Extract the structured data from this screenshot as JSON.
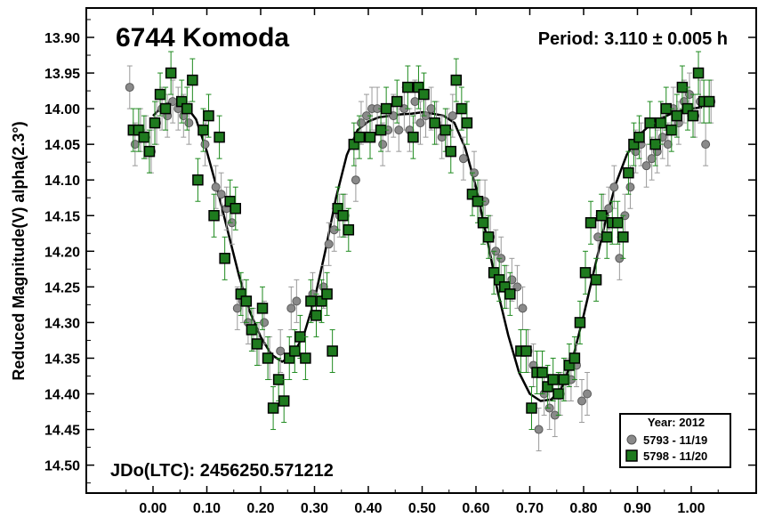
{
  "chart_data": {
    "type": "scatter",
    "title": "6744 Komoda",
    "annotations": {
      "period": "Period: 3.110 ± 0.005 h",
      "jd": "JDo(LTC): 2456250.571212"
    },
    "ylabel": "Reduced Magnitude(V) alpha(2.3°)",
    "xlabel": "",
    "xlim": [
      -0.05,
      1.05
    ],
    "ylim": [
      14.55,
      13.85
    ],
    "y_inverted": true,
    "x_ticks": [
      "0.00",
      "0.10",
      "0.20",
      "0.30",
      "0.40",
      "0.50",
      "0.60",
      "0.70",
      "0.80",
      "0.90",
      "1.00"
    ],
    "y_ticks": [
      "13.90",
      "13.95",
      "14.00",
      "14.05",
      "14.10",
      "14.15",
      "14.20",
      "14.25",
      "14.30",
      "14.35",
      "14.40",
      "14.45",
      "14.50"
    ],
    "grid": false,
    "legend": {
      "position": "bottom-right",
      "title": "Year: 2012",
      "entries": [
        {
          "label": "5793 - 11/19",
          "marker": "circle",
          "color": "#888888"
        },
        {
          "label": "5798 - 11/20",
          "marker": "square",
          "color": "#1e7a1e"
        }
      ]
    },
    "fit_curve": {
      "color": "#000000",
      "x": [
        0.0,
        0.02,
        0.04,
        0.06,
        0.08,
        0.1,
        0.12,
        0.14,
        0.16,
        0.18,
        0.2,
        0.22,
        0.24,
        0.26,
        0.28,
        0.3,
        0.32,
        0.34,
        0.36,
        0.38,
        0.4,
        0.42,
        0.44,
        0.46,
        0.48,
        0.5,
        0.52,
        0.54,
        0.56,
        0.58,
        0.6,
        0.62,
        0.64,
        0.66,
        0.68,
        0.7,
        0.72,
        0.74,
        0.76,
        0.78,
        0.8,
        0.82,
        0.84,
        0.86,
        0.88,
        0.9,
        0.92,
        0.94,
        0.96,
        0.98,
        1.0,
        1.02
      ],
      "y": [
        14.01,
        13.995,
        13.988,
        13.995,
        14.015,
        14.06,
        14.115,
        14.175,
        14.235,
        14.285,
        14.32,
        14.345,
        14.355,
        14.345,
        14.318,
        14.268,
        14.2,
        14.125,
        14.065,
        14.03,
        14.018,
        14.012,
        14.01,
        14.008,
        14.007,
        14.005,
        14.007,
        14.01,
        14.02,
        14.055,
        14.11,
        14.18,
        14.255,
        14.318,
        14.37,
        14.4,
        14.41,
        14.408,
        14.39,
        14.35,
        14.29,
        14.225,
        14.16,
        14.105,
        14.065,
        14.04,
        14.025,
        14.015,
        14.008,
        14.003,
        14.0,
        13.998
      ]
    },
    "series": [
      {
        "name": "5793 - 11/19",
        "marker": "circle",
        "color": "#888888",
        "points": [
          [
            -0.04,
            13.97
          ],
          [
            -0.03,
            14.05
          ],
          [
            -0.02,
            14.03
          ],
          [
            -0.01,
            14.04
          ],
          [
            0.0,
            14.06
          ],
          [
            0.01,
            14.02
          ],
          [
            0.02,
            14.0
          ],
          [
            0.03,
            14.01
          ],
          [
            0.04,
            13.99
          ],
          [
            0.05,
            14.0
          ],
          [
            0.06,
            14.01
          ],
          [
            0.07,
            14.02
          ],
          [
            0.1,
            14.05
          ],
          [
            0.12,
            14.11
          ],
          [
            0.13,
            14.12
          ],
          [
            0.14,
            14.14
          ],
          [
            0.15,
            14.16
          ],
          [
            0.16,
            14.28
          ],
          [
            0.17,
            14.27
          ],
          [
            0.18,
            14.3
          ],
          [
            0.19,
            14.31
          ],
          [
            0.2,
            14.33
          ],
          [
            0.21,
            14.3
          ],
          [
            0.22,
            14.35
          ],
          [
            0.24,
            14.34
          ],
          [
            0.26,
            14.28
          ],
          [
            0.27,
            14.27
          ],
          [
            0.3,
            14.26
          ],
          [
            0.32,
            14.25
          ],
          [
            0.33,
            14.19
          ],
          [
            0.34,
            14.17
          ],
          [
            0.35,
            14.15
          ],
          [
            0.36,
            14.15
          ],
          [
            0.38,
            14.1
          ],
          [
            0.39,
            14.02
          ],
          [
            0.4,
            14.01
          ],
          [
            0.41,
            14.0
          ],
          [
            0.42,
            14.0
          ],
          [
            0.43,
            14.05
          ],
          [
            0.44,
            14.03
          ],
          [
            0.45,
            14.01
          ],
          [
            0.46,
            14.03
          ],
          [
            0.47,
            14.0
          ],
          [
            0.48,
            14.03
          ],
          [
            0.49,
            13.99
          ],
          [
            0.5,
            14.02
          ],
          [
            0.51,
            14.01
          ],
          [
            0.52,
            14.0
          ],
          [
            0.53,
            14.02
          ],
          [
            0.54,
            14.04
          ],
          [
            0.55,
            14.03
          ],
          [
            0.56,
            14.01
          ],
          [
            0.58,
            14.07
          ],
          [
            0.6,
            14.09
          ],
          [
            0.61,
            14.13
          ],
          [
            0.62,
            14.13
          ],
          [
            0.63,
            14.18
          ],
          [
            0.64,
            14.2
          ],
          [
            0.65,
            14.21
          ],
          [
            0.66,
            14.25
          ],
          [
            0.67,
            14.24
          ],
          [
            0.68,
            14.25
          ],
          [
            0.69,
            14.28
          ],
          [
            0.7,
            14.34
          ],
          [
            0.71,
            14.36
          ],
          [
            0.72,
            14.45
          ],
          [
            0.73,
            14.4
          ],
          [
            0.74,
            14.42
          ],
          [
            0.75,
            14.43
          ],
          [
            0.76,
            14.4
          ],
          [
            0.77,
            14.38
          ],
          [
            0.78,
            14.38
          ],
          [
            0.79,
            14.36
          ],
          [
            0.8,
            14.41
          ],
          [
            0.81,
            14.4
          ],
          [
            0.83,
            14.18
          ],
          [
            0.84,
            14.15
          ],
          [
            0.85,
            14.14
          ],
          [
            0.86,
            14.11
          ],
          [
            0.87,
            14.21
          ],
          [
            0.88,
            14.15
          ],
          [
            0.89,
            14.11
          ],
          [
            0.9,
            14.06
          ],
          [
            0.91,
            14.05
          ],
          [
            0.92,
            14.08
          ],
          [
            0.93,
            14.07
          ],
          [
            0.94,
            14.06
          ],
          [
            0.95,
            14.04
          ],
          [
            0.96,
            14.05
          ],
          [
            0.97,
            14.0
          ],
          [
            0.98,
            14.02
          ],
          [
            0.99,
            13.99
          ],
          [
            1.0,
            13.98
          ],
          [
            1.01,
            14.01
          ],
          [
            1.02,
            13.99
          ],
          [
            1.03,
            14.05
          ],
          [
            1.04,
            13.99
          ]
        ]
      },
      {
        "name": "5798 - 11/20",
        "marker": "square",
        "color": "#1e7a1e",
        "points": [
          [
            -0.04,
            14.03
          ],
          [
            -0.03,
            14.03
          ],
          [
            -0.02,
            14.04
          ],
          [
            -0.01,
            14.06
          ],
          [
            0.0,
            14.02
          ],
          [
            0.01,
            13.98
          ],
          [
            0.02,
            14.0
          ],
          [
            0.03,
            13.95
          ],
          [
            0.05,
            13.99
          ],
          [
            0.06,
            14.0
          ],
          [
            0.07,
            13.96
          ],
          [
            0.08,
            14.1
          ],
          [
            0.09,
            14.03
          ],
          [
            0.1,
            14.01
          ],
          [
            0.11,
            14.15
          ],
          [
            0.12,
            14.04
          ],
          [
            0.13,
            14.21
          ],
          [
            0.14,
            14.13
          ],
          [
            0.15,
            14.14
          ],
          [
            0.16,
            14.26
          ],
          [
            0.17,
            14.27
          ],
          [
            0.18,
            14.31
          ],
          [
            0.19,
            14.33
          ],
          [
            0.2,
            14.28
          ],
          [
            0.21,
            14.35
          ],
          [
            0.22,
            14.42
          ],
          [
            0.23,
            14.38
          ],
          [
            0.24,
            14.41
          ],
          [
            0.25,
            14.35
          ],
          [
            0.26,
            14.34
          ],
          [
            0.27,
            14.32
          ],
          [
            0.28,
            14.35
          ],
          [
            0.29,
            14.27
          ],
          [
            0.3,
            14.29
          ],
          [
            0.31,
            14.27
          ],
          [
            0.32,
            14.26
          ],
          [
            0.33,
            14.34
          ],
          [
            0.34,
            14.14
          ],
          [
            0.35,
            14.15
          ],
          [
            0.36,
            14.17
          ],
          [
            0.37,
            14.05
          ],
          [
            0.38,
            14.04
          ],
          [
            0.4,
            14.04
          ],
          [
            0.42,
            14.03
          ],
          [
            0.43,
            14.0
          ],
          [
            0.45,
            13.99
          ],
          [
            0.47,
            13.97
          ],
          [
            0.48,
            14.04
          ],
          [
            0.49,
            13.97
          ],
          [
            0.5,
            13.98
          ],
          [
            0.52,
            14.02
          ],
          [
            0.54,
            14.03
          ],
          [
            0.55,
            14.06
          ],
          [
            0.56,
            13.96
          ],
          [
            0.57,
            14.0
          ],
          [
            0.58,
            14.02
          ],
          [
            0.59,
            14.12
          ],
          [
            0.6,
            14.13
          ],
          [
            0.61,
            14.16
          ],
          [
            0.62,
            14.18
          ],
          [
            0.63,
            14.23
          ],
          [
            0.64,
            14.24
          ],
          [
            0.65,
            14.25
          ],
          [
            0.66,
            14.26
          ],
          [
            0.68,
            14.34
          ],
          [
            0.69,
            14.34
          ],
          [
            0.7,
            14.42
          ],
          [
            0.71,
            14.37
          ],
          [
            0.72,
            14.37
          ],
          [
            0.73,
            14.39
          ],
          [
            0.74,
            14.38
          ],
          [
            0.75,
            14.4
          ],
          [
            0.76,
            14.38
          ],
          [
            0.77,
            14.36
          ],
          [
            0.78,
            14.35
          ],
          [
            0.79,
            14.3
          ],
          [
            0.8,
            14.23
          ],
          [
            0.81,
            14.16
          ],
          [
            0.82,
            14.24
          ],
          [
            0.83,
            14.15
          ],
          [
            0.84,
            14.18
          ],
          [
            0.85,
            14.16
          ],
          [
            0.86,
            14.16
          ],
          [
            0.87,
            14.18
          ],
          [
            0.88,
            14.09
          ],
          [
            0.89,
            14.05
          ],
          [
            0.9,
            14.04
          ],
          [
            0.92,
            14.02
          ],
          [
            0.93,
            14.05
          ],
          [
            0.94,
            14.02
          ],
          [
            0.95,
            14.0
          ],
          [
            0.96,
            14.03
          ],
          [
            0.97,
            14.01
          ],
          [
            0.98,
            13.97
          ],
          [
            0.99,
            14.0
          ],
          [
            1.0,
            14.01
          ],
          [
            1.01,
            13.95
          ],
          [
            1.02,
            13.99
          ],
          [
            1.03,
            13.99
          ]
        ]
      }
    ]
  }
}
